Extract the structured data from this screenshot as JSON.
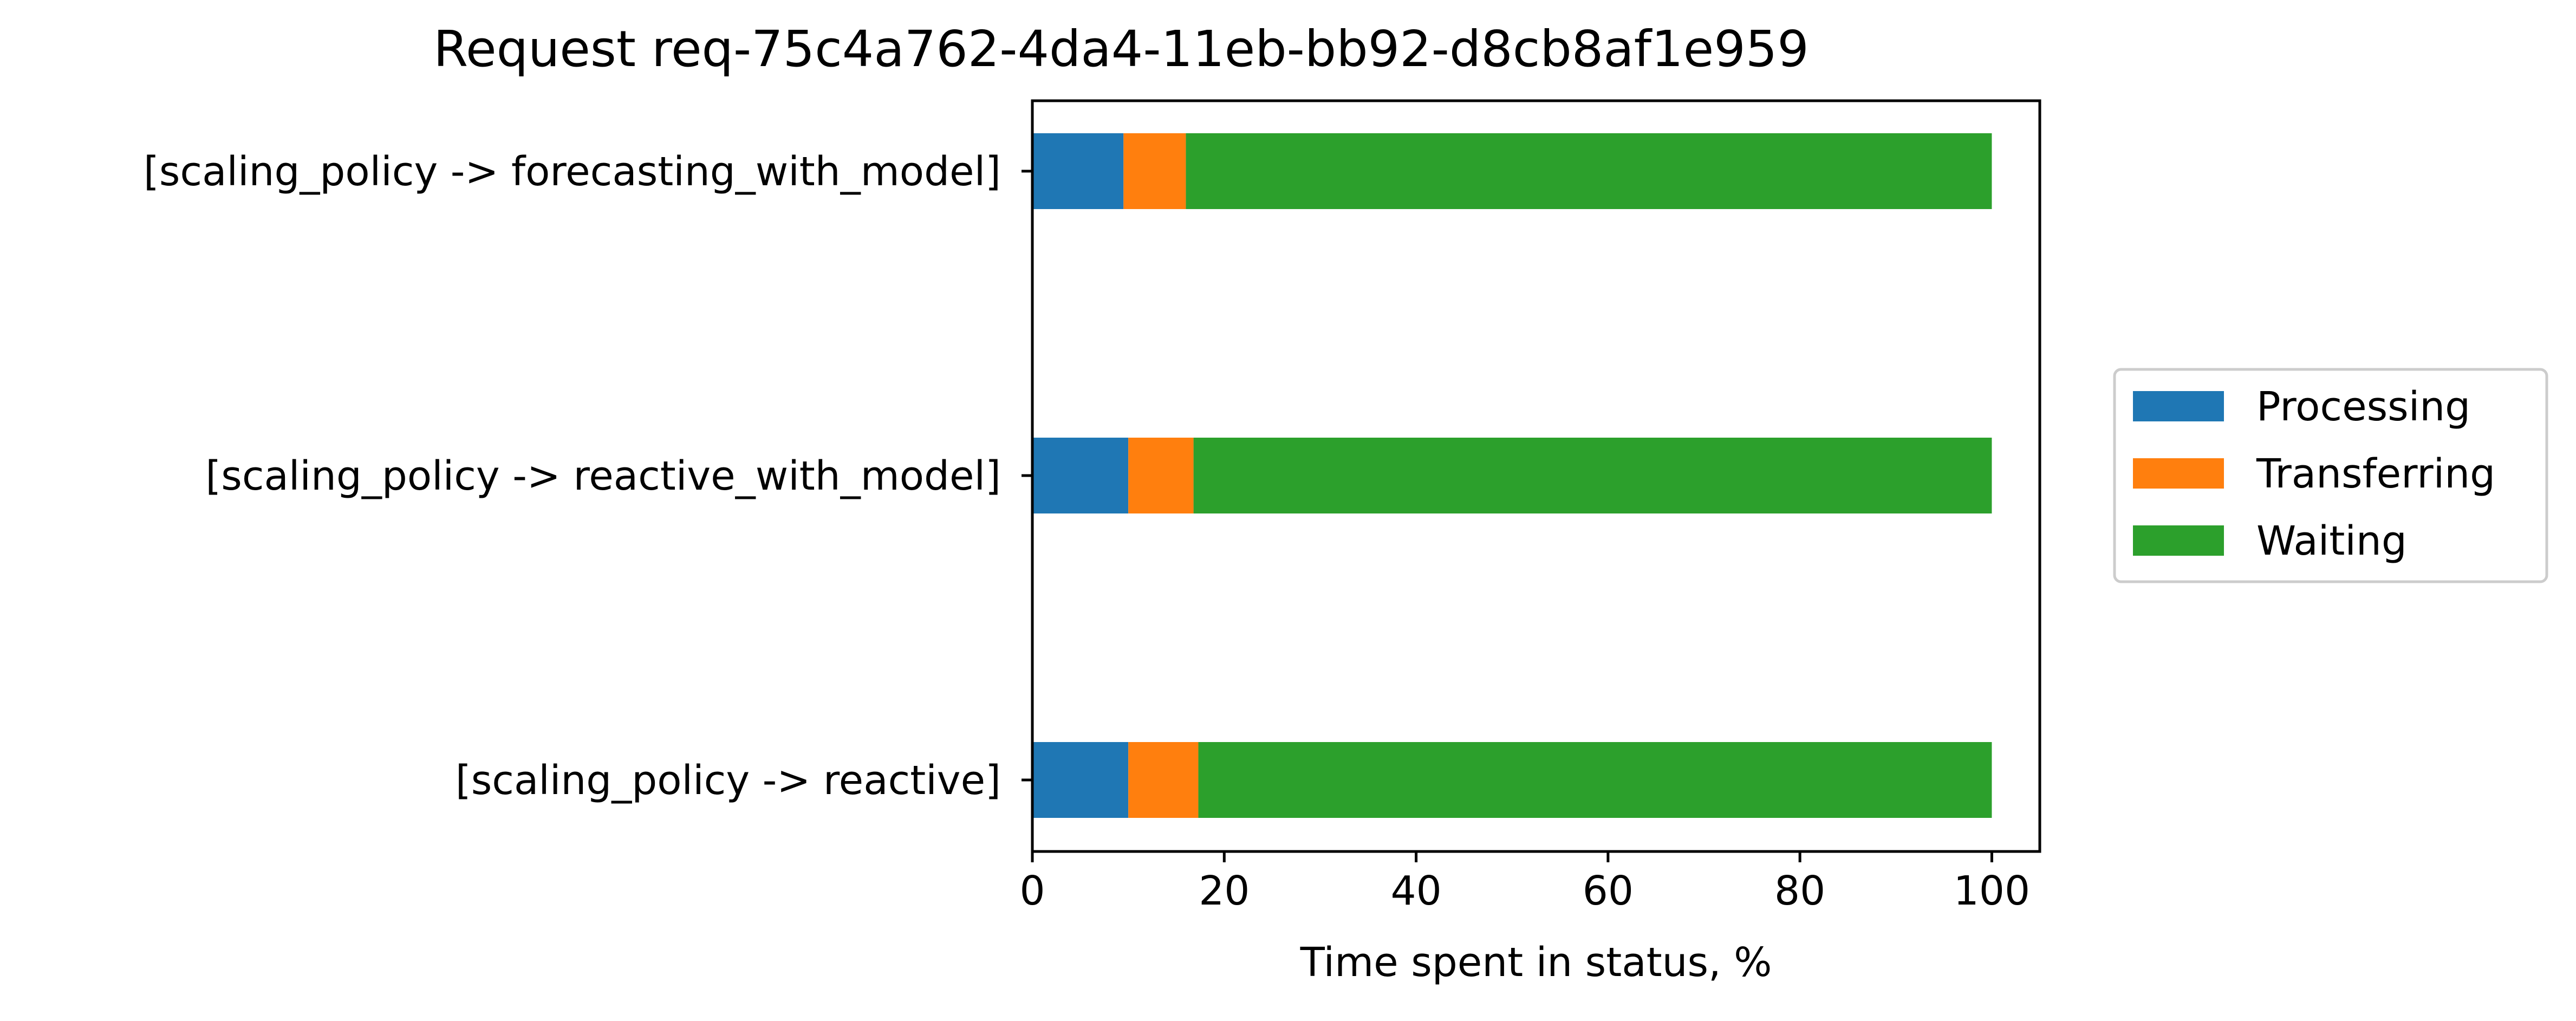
{
  "chart_data": {
    "type": "bar",
    "orientation": "horizontal",
    "stacked": true,
    "title": "Request req-75c4a762-4da4-11eb-bb92-d8cb8af1e959",
    "xlabel": "Time spent in status, %",
    "ylabel": "",
    "xlim": [
      0,
      105
    ],
    "xticks": [
      0,
      20,
      40,
      60,
      80,
      100
    ],
    "grid": false,
    "legend_position": "right",
    "categories": [
      "[scaling_policy -> forecasting_with_model]",
      "[scaling_policy -> reactive_with_model]",
      "[scaling_policy -> reactive]"
    ],
    "series": [
      {
        "name": "Processing",
        "color": "#1f77b4",
        "values": [
          9.5,
          10.0,
          10.0
        ]
      },
      {
        "name": "Transferring",
        "color": "#ff7f0e",
        "values": [
          6.5,
          6.8,
          7.3
        ]
      },
      {
        "name": "Waiting",
        "color": "#2ca02c",
        "values": [
          84.0,
          83.2,
          82.7
        ]
      }
    ]
  }
}
